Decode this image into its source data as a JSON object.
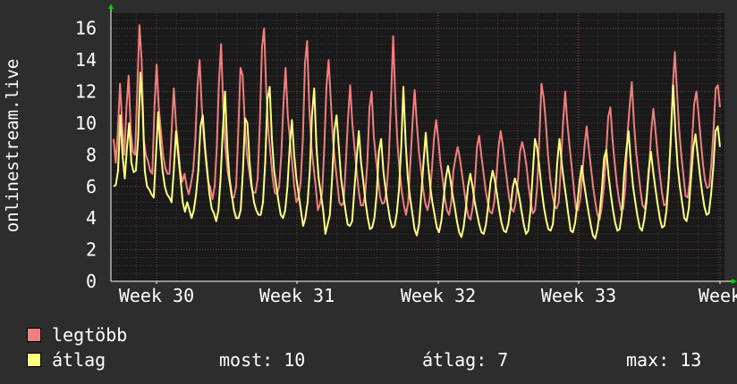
{
  "chart_data": {
    "type": "line",
    "ylabel": "onlinestream.live",
    "ylim": [
      0,
      17
    ],
    "yticks": [
      0,
      2,
      4,
      6,
      8,
      10,
      12,
      14,
      16
    ],
    "xtick_labels": [
      "Week 30",
      "Week 31",
      "Week 32",
      "Week 33",
      "Week"
    ],
    "grid": true,
    "series": [
      {
        "name": "legtöbb",
        "color": "#f08080",
        "values": [
          9.0,
          7.5,
          9.5,
          12.5,
          10.0,
          8.0,
          11.0,
          13.0,
          9.5,
          8.2,
          8.0,
          12.0,
          16.2,
          14.0,
          9.0,
          8.0,
          7.6,
          7.0,
          6.8,
          11.0,
          13.7,
          11.0,
          9.5,
          8.0,
          7.2,
          6.8,
          6.8,
          9.5,
          12.2,
          10.0,
          8.5,
          7.0,
          6.3,
          6.8,
          6.0,
          5.5,
          6.2,
          7.0,
          9.0,
          12.3,
          14.0,
          11.0,
          9.0,
          7.5,
          6.3,
          5.9,
          5.2,
          6.0,
          8.5,
          12.6,
          15.0,
          11.0,
          8.5,
          7.0,
          6.2,
          5.3,
          5.3,
          6.0,
          9.5,
          13.5,
          13.0,
          10.0,
          8.0,
          7.0,
          6.0,
          5.6,
          5.6,
          6.5,
          10.0,
          14.8,
          16.0,
          12.0,
          9.5,
          8.0,
          6.5,
          5.6,
          5.5,
          6.0,
          8.0,
          11.2,
          13.5,
          10.5,
          9.0,
          7.5,
          6.0,
          5.0,
          5.3,
          6.3,
          9.0,
          13.8,
          15.2,
          11.0,
          8.5,
          7.2,
          6.0,
          4.5,
          4.9,
          5.6,
          8.5,
          12.3,
          14.0,
          11.5,
          9.0,
          7.5,
          6.3,
          5.0,
          4.8,
          5.0,
          7.5,
          10.3,
          12.4,
          10.0,
          8.5,
          7.0,
          5.7,
          4.8,
          4.8,
          5.5,
          7.5,
          11.0,
          12.0,
          9.2,
          7.8,
          6.5,
          5.3,
          4.9,
          5.0,
          5.8,
          7.8,
          11.4,
          15.5,
          11.5,
          8.7,
          7.0,
          5.7,
          4.8,
          4.2,
          5.0,
          7.5,
          10.0,
          12.1,
          10.0,
          8.2,
          7.0,
          5.8,
          4.9,
          4.5,
          5.2,
          7.0,
          9.0,
          10.2,
          9.0,
          7.5,
          6.5,
          5.3,
          4.5,
          4.2,
          5.0,
          7.0,
          7.8,
          8.5,
          7.8,
          6.8,
          5.8,
          4.8,
          4.1,
          3.9,
          4.7,
          6.2,
          8.5,
          9.2,
          8.0,
          6.9,
          5.8,
          5.0,
          4.4,
          4.3,
          5.0,
          6.6,
          8.5,
          9.5,
          8.6,
          7.4,
          6.3,
          5.2,
          4.6,
          4.4,
          5.0,
          6.4,
          8.2,
          8.8,
          8.2,
          7.3,
          6.0,
          5.0,
          4.3,
          4.5,
          6.0,
          9.0,
          12.5,
          11.6,
          10.0,
          8.0,
          6.5,
          5.5,
          4.8,
          4.6,
          5.0,
          7.3,
          10.0,
          12.0,
          10.0,
          8.6,
          7.3,
          5.9,
          4.6,
          4.5,
          5.2,
          6.8,
          8.5,
          9.8,
          8.4,
          7.2,
          6.0,
          5.0,
          4.2,
          3.9,
          4.7,
          6.0,
          8.0,
          10.4,
          11.0,
          9.0,
          7.5,
          6.2,
          5.2,
          4.5,
          4.6,
          6.0,
          9.3,
          11.1,
          12.6,
          10.0,
          8.2,
          7.0,
          5.8,
          4.8,
          4.6,
          5.5,
          7.0,
          9.5,
          10.9,
          9.5,
          8.0,
          6.8,
          5.6,
          4.8,
          4.9,
          6.2,
          8.7,
          12.2,
          14.5,
          12.0,
          9.6,
          8.0,
          6.7,
          5.4,
          5.3,
          6.4,
          8.8,
          11.2,
          12.0,
          10.6,
          9.0,
          7.5,
          6.4,
          5.9,
          6.0,
          7.5,
          9.6,
          12.2,
          12.4,
          11.0
        ]
      },
      {
        "name": "átlag",
        "color": "#ffff80",
        "values": [
          6.0,
          6.1,
          7.0,
          10.5,
          8.0,
          6.5,
          8.5,
          10.0,
          7.5,
          6.9,
          7.0,
          9.0,
          13.2,
          11.0,
          7.0,
          6.0,
          5.8,
          5.5,
          5.3,
          8.0,
          10.7,
          8.5,
          7.0,
          6.0,
          5.5,
          5.3,
          5.0,
          7.0,
          9.5,
          8.0,
          6.5,
          5.0,
          4.4,
          5.0,
          4.5,
          4.0,
          4.5,
          5.5,
          7.0,
          9.8,
          10.5,
          8.5,
          7.0,
          5.5,
          4.6,
          4.3,
          3.8,
          4.5,
          6.5,
          9.5,
          12.0,
          8.5,
          6.5,
          5.5,
          4.5,
          4.0,
          4.0,
          4.5,
          7.0,
          10.3,
          10.0,
          7.5,
          6.0,
          5.0,
          4.5,
          4.2,
          4.2,
          5.0,
          7.5,
          11.5,
          12.3,
          9.0,
          7.0,
          6.0,
          5.0,
          4.2,
          4.0,
          4.5,
          6.0,
          8.5,
          10.2,
          8.0,
          6.5,
          5.5,
          4.5,
          3.5,
          4.0,
          5.0,
          7.0,
          10.5,
          12.2,
          8.5,
          6.5,
          5.5,
          4.5,
          3.0,
          3.6,
          4.2,
          6.5,
          9.5,
          10.5,
          8.5,
          6.5,
          5.5,
          4.5,
          3.6,
          3.5,
          3.8,
          5.8,
          7.7,
          9.5,
          7.5,
          6.3,
          5.0,
          4.0,
          3.3,
          3.4,
          4.0,
          5.5,
          8.2,
          9.0,
          7.0,
          5.8,
          4.8,
          3.9,
          3.4,
          3.5,
          4.3,
          5.8,
          8.5,
          12.3,
          8.8,
          6.5,
          5.3,
          4.3,
          3.3,
          2.9,
          3.6,
          5.5,
          7.5,
          9.4,
          7.5,
          6.0,
          5.0,
          4.2,
          3.4,
          3.1,
          3.8,
          5.2,
          6.5,
          7.3,
          6.5,
          5.5,
          4.7,
          3.8,
          3.1,
          2.8,
          3.4,
          4.6,
          6.0,
          6.8,
          6.0,
          5.0,
          4.3,
          3.6,
          3.1,
          3.0,
          3.6,
          4.8,
          6.2,
          7.0,
          6.4,
          5.5,
          4.5,
          3.7,
          3.2,
          3.1,
          3.6,
          4.6,
          5.9,
          6.5,
          6.0,
          5.3,
          4.4,
          3.6,
          3.0,
          3.2,
          4.5,
          6.8,
          9.0,
          8.4,
          7.2,
          5.8,
          4.7,
          3.9,
          3.3,
          3.2,
          3.6,
          5.2,
          7.5,
          9.0,
          7.5,
          6.3,
          5.3,
          4.2,
          3.2,
          3.1,
          3.7,
          4.9,
          6.3,
          7.3,
          6.2,
          5.3,
          4.4,
          3.6,
          2.9,
          2.7,
          3.3,
          4.3,
          5.8,
          7.8,
          8.3,
          6.7,
          5.5,
          4.5,
          3.7,
          3.2,
          3.3,
          4.3,
          6.8,
          8.3,
          9.5,
          7.5,
          6.0,
          5.0,
          4.1,
          3.4,
          3.2,
          3.9,
          5.0,
          7.0,
          8.2,
          7.0,
          5.9,
          4.9,
          4.0,
          3.4,
          3.5,
          4.5,
          6.5,
          9.3,
          12.4,
          9.5,
          7.3,
          6.0,
          5.0,
          4.0,
          3.8,
          4.6,
          6.5,
          8.4,
          9.3,
          8.0,
          6.7,
          5.6,
          4.7,
          4.2,
          4.3,
          5.5,
          7.2,
          9.5,
          9.8,
          8.5
        ]
      }
    ],
    "legend": [
      {
        "label": "legtöbb",
        "color": "#f08080"
      },
      {
        "label": "átlag",
        "color": "#ffff80"
      }
    ],
    "stats": {
      "most_label": "most:",
      "most_value": "10",
      "atlag_label": "átlag:",
      "atlag_value": "7",
      "max_label": "max:",
      "max_value": "13"
    }
  }
}
